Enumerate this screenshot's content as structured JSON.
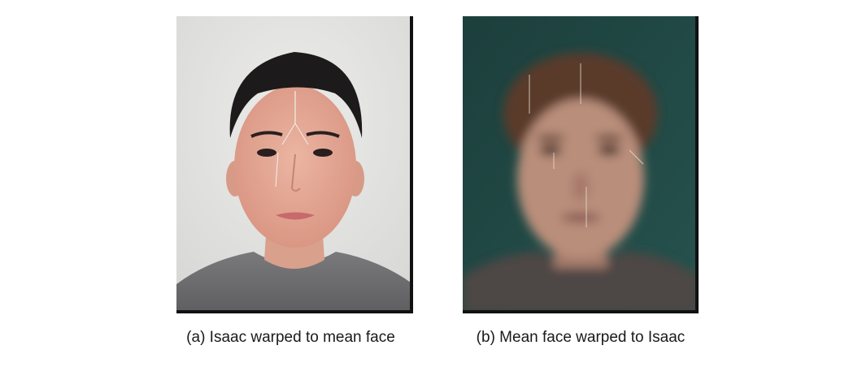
{
  "figure": {
    "panels": [
      {
        "id": "a",
        "caption": "(a) Isaac warped to mean face",
        "image": {
          "subject": "portrait-photo",
          "background_color": "#e4e4e2",
          "shirt_color": "#6e6e70",
          "hair_color": "#1c1a1a",
          "skin_color": "#e0a895"
        }
      },
      {
        "id": "b",
        "caption": "(b) Mean face warped to Isaac",
        "image": {
          "subject": "blurred-average-face",
          "background_color": "#1f4a46",
          "shirt_color": "#4e4744",
          "hair_color": "#5a3a2c",
          "skin_color": "#b98e7a"
        }
      }
    ]
  }
}
